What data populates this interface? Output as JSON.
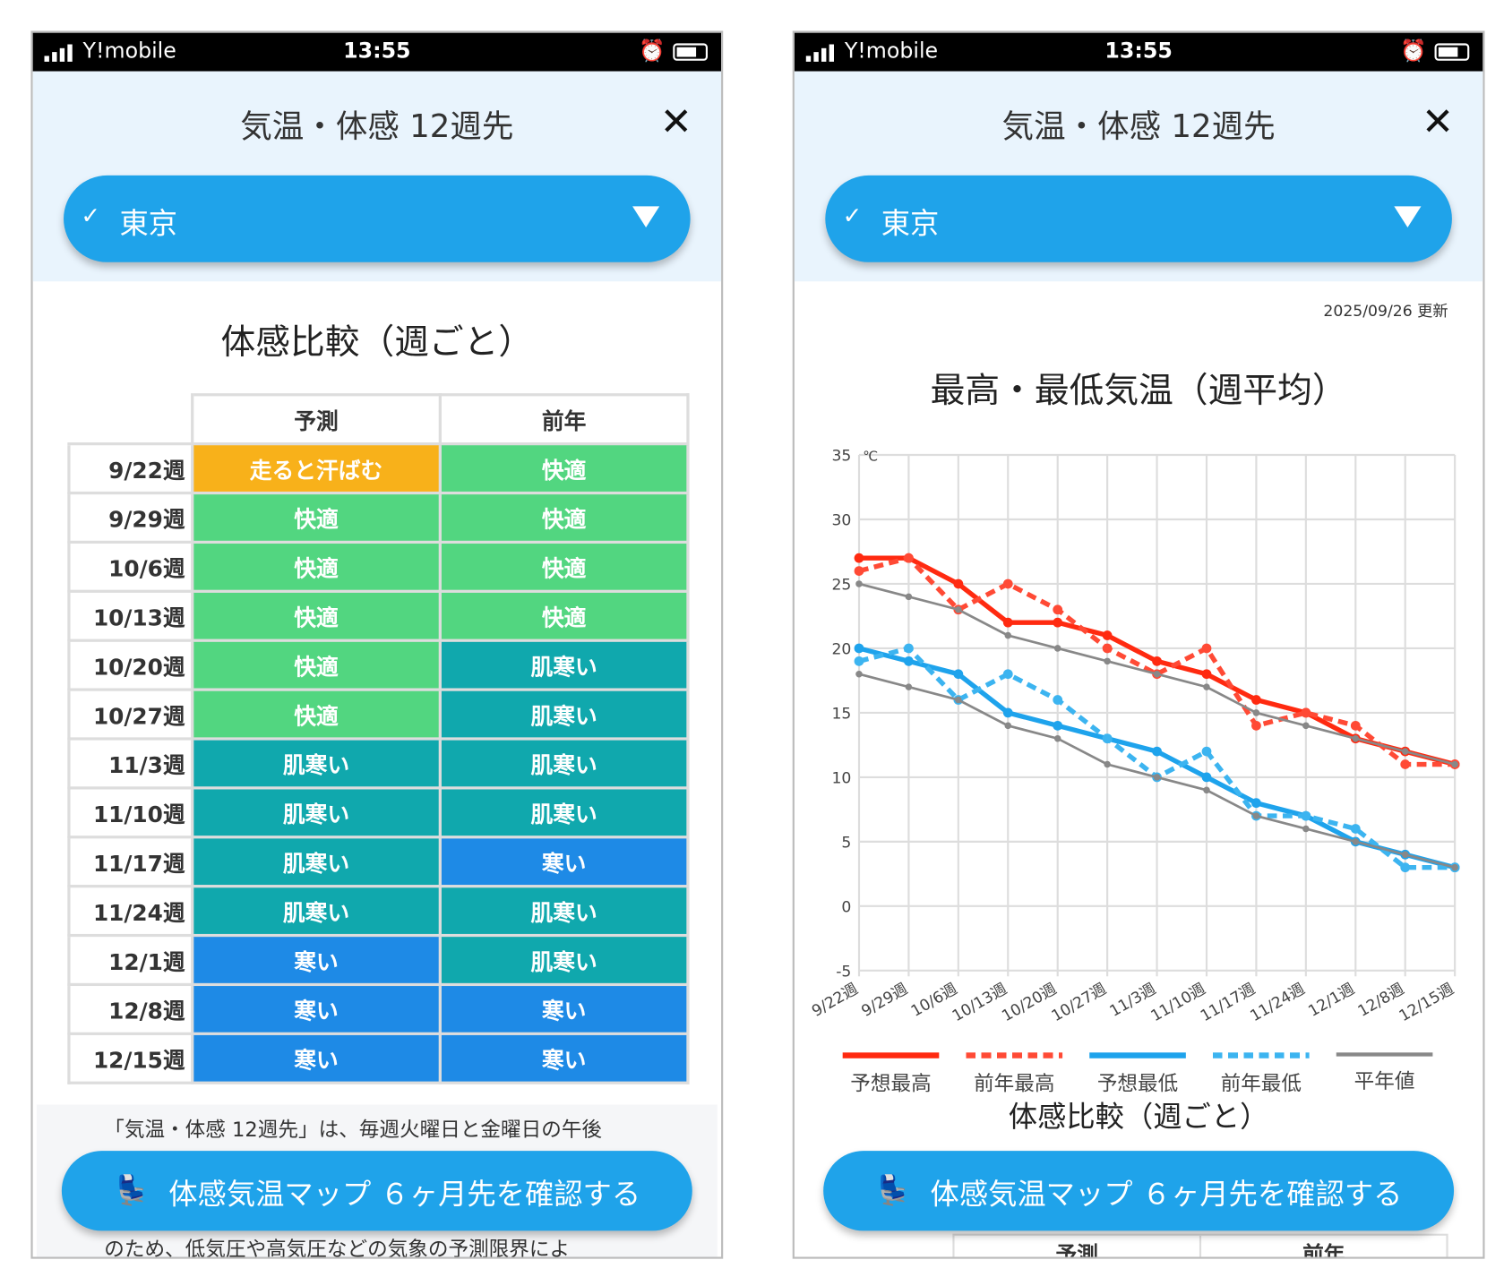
{
  "status": {
    "carrier": "Y!mobile",
    "time": "13:55"
  },
  "header": {
    "title": "気温・体感 12週先",
    "close": "✕",
    "location": "東京",
    "check": "✓"
  },
  "left": {
    "section_title": "体感比較（週ごと）",
    "columns": [
      "予測",
      "前年"
    ],
    "rows": [
      {
        "week": "9/22週",
        "forecast": "走ると汗ばむ",
        "prev": "快適"
      },
      {
        "week": "9/29週",
        "forecast": "快適",
        "prev": "快適"
      },
      {
        "week": "10/6週",
        "forecast": "快適",
        "prev": "快適"
      },
      {
        "week": "10/13週",
        "forecast": "快適",
        "prev": "快適"
      },
      {
        "week": "10/20週",
        "forecast": "快適",
        "prev": "肌寒い"
      },
      {
        "week": "10/27週",
        "forecast": "快適",
        "prev": "肌寒い"
      },
      {
        "week": "11/3週",
        "forecast": "肌寒い",
        "prev": "肌寒い"
      },
      {
        "week": "11/10週",
        "forecast": "肌寒い",
        "prev": "肌寒い"
      },
      {
        "week": "11/17週",
        "forecast": "肌寒い",
        "prev": "寒い"
      },
      {
        "week": "11/24週",
        "forecast": "肌寒い",
        "prev": "肌寒い"
      },
      {
        "week": "12/1週",
        "forecast": "寒い",
        "prev": "肌寒い"
      },
      {
        "week": "12/8週",
        "forecast": "寒い",
        "prev": "寒い"
      },
      {
        "week": "12/15週",
        "forecast": "寒い",
        "prev": "寒い"
      }
    ],
    "level_colors": {
      "走ると汗ばむ": "#f8b11a",
      "快適": "#52d680",
      "肌寒い": "#10a8ad",
      "寒い": "#1e8ae6"
    },
    "notice_lines": [
      "「気温・体感 12週先」は、毎週火曜日と金曜日の午後",
      "のため、低気圧や高気圧などの気象の予測限界によ"
    ]
  },
  "cta": {
    "label": "体感気温マップ ６ヶ月先を確認する"
  },
  "right": {
    "updated": "2025/09/26 更新",
    "section_title_partial": "体感比較（週ごと）",
    "columns": [
      "予測",
      "前年"
    ]
  },
  "chart_data": {
    "type": "line",
    "title": "最高・最低気温（週平均）",
    "ylabel": "℃",
    "ylim": [
      -5,
      35
    ],
    "yticks": [
      -5,
      0,
      5,
      10,
      15,
      20,
      25,
      30,
      35
    ],
    "grid": true,
    "legend": "bottom",
    "categories": [
      "9/22週",
      "9/29週",
      "10/6週",
      "10/13週",
      "10/20週",
      "10/27週",
      "11/3週",
      "11/10週",
      "11/17週",
      "11/24週",
      "12/1週",
      "12/8週",
      "12/15週"
    ],
    "series": [
      {
        "name": "予想最高",
        "color": "#ff2a10",
        "dash": false,
        "values": [
          27,
          27,
          25,
          22,
          22,
          21,
          19,
          18,
          16,
          15,
          13,
          12,
          11
        ]
      },
      {
        "name": "前年最高",
        "color": "#ff4a35",
        "dash": true,
        "values": [
          26,
          27,
          23,
          25,
          23,
          20,
          18,
          20,
          14,
          15,
          14,
          11,
          11
        ]
      },
      {
        "name": "予想最低",
        "color": "#1ea3ec",
        "dash": false,
        "values": [
          20,
          19,
          18,
          15,
          14,
          13,
          12,
          10,
          8,
          7,
          5,
          4,
          3
        ]
      },
      {
        "name": "前年最低",
        "color": "#3cb4f0",
        "dash": true,
        "values": [
          19,
          20,
          16,
          18,
          16,
          13,
          10,
          12,
          7,
          7,
          6,
          3,
          3
        ]
      },
      {
        "name": "平年値",
        "color": "#888888",
        "dash": false,
        "values": [
          25,
          24,
          23,
          21,
          20,
          19,
          18,
          17,
          15,
          14,
          13,
          12,
          11
        ]
      },
      {
        "name": "平年値",
        "color": "#888888",
        "dash": false,
        "values": [
          18,
          17,
          16,
          14,
          13,
          11,
          10,
          9,
          7,
          6,
          5,
          4,
          3
        ]
      }
    ]
  }
}
